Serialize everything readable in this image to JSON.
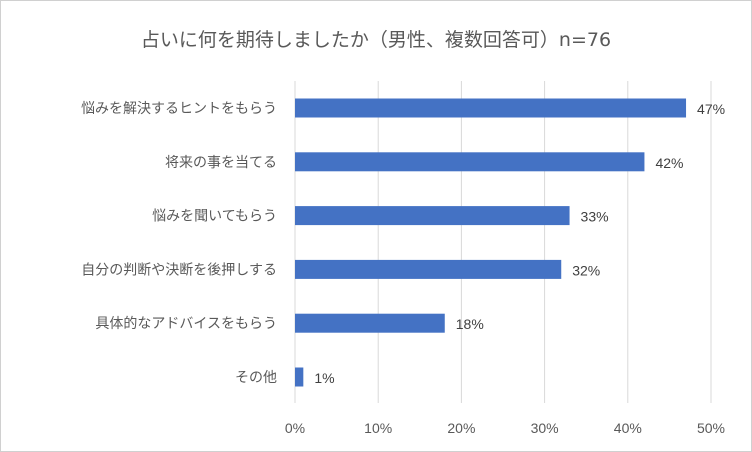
{
  "chart_data": {
    "type": "bar",
    "orientation": "horizontal",
    "title": "占いに何を期待しましたか（男性、複数回答可）n=76",
    "categories": [
      "悩みを解決するヒントをもらう",
      "将来の事を当てる",
      "悩みを聞いてもらう",
      "自分の判断や決断を後押しする",
      "具体的なアドバイスをもらう",
      "その他"
    ],
    "values": [
      47,
      42,
      33,
      32,
      18,
      1
    ],
    "data_labels": [
      "47%",
      "42%",
      "33%",
      "32%",
      "18%",
      "1%"
    ],
    "xlim": [
      0,
      50
    ],
    "xticks": [
      0,
      10,
      20,
      30,
      40,
      50
    ],
    "xtick_labels": [
      "0%",
      "10%",
      "20%",
      "30%",
      "40%",
      "50%"
    ],
    "grid": "vertical",
    "legend": "none",
    "bar_color": "#4472C4"
  }
}
